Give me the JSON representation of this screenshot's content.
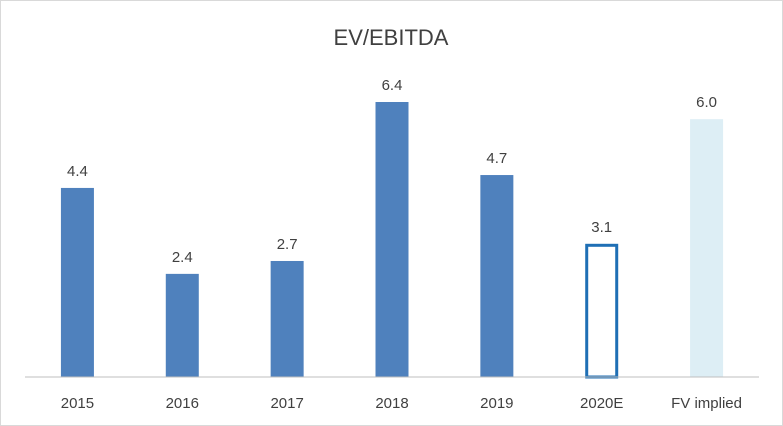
{
  "chart_data": {
    "type": "bar",
    "title": "EV/EBITDA",
    "xlabel": "",
    "ylabel": "",
    "categories": [
      "2015",
      "2016",
      "2017",
      "2018",
      "2019",
      "2020E",
      "FV implied"
    ],
    "values": [
      4.4,
      2.4,
      2.7,
      6.4,
      4.7,
      3.1,
      6.0
    ],
    "data_labels": [
      "4.4",
      "2.4",
      "2.7",
      "6.4",
      "4.7",
      "3.1",
      "6.0"
    ],
    "ylim": [
      0,
      6.4
    ],
    "grid": false,
    "legend": "none",
    "bar_styles": [
      "solid",
      "solid",
      "solid",
      "solid",
      "solid",
      "outline",
      "light"
    ],
    "colors": {
      "solid": "#4f81bd",
      "outline": "#1f6fb5",
      "light": "#ddeef5",
      "axis": "#bfbfbf",
      "text": "#404040"
    }
  }
}
